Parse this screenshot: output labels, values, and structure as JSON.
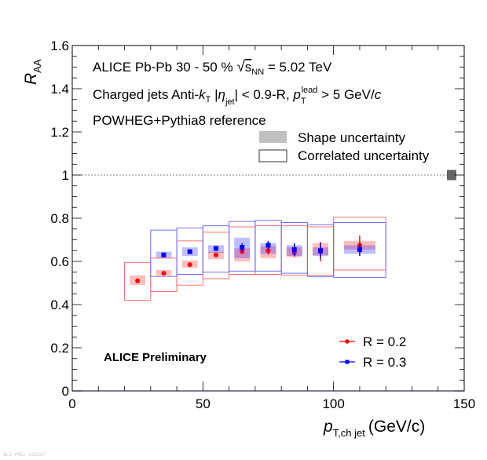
{
  "chart_data": {
    "type": "scatter",
    "xlabel_main": "p",
    "xlabel_sub": "T,ch jet",
    "xlabel_unit": "(GeV/c)",
    "ylabel_main": "R",
    "ylabel_sub": "AA",
    "xlim": [
      0,
      150
    ],
    "ylim": [
      0,
      1.6
    ],
    "x_ticks": [
      {
        "value": 0,
        "label": "0"
      },
      {
        "value": 50,
        "label": "50"
      },
      {
        "value": 100,
        "label": "100"
      },
      {
        "value": 150,
        "label": "150"
      }
    ],
    "y_ticks": [
      {
        "value": 0,
        "label": "0"
      },
      {
        "value": 0.2,
        "label": "0.2"
      },
      {
        "value": 0.4,
        "label": "0.4"
      },
      {
        "value": 0.6,
        "label": "0.6"
      },
      {
        "value": 0.8,
        "label": "0.8"
      },
      {
        "value": 1,
        "label": "1"
      },
      {
        "value": 1.2,
        "label": "1.2"
      },
      {
        "value": 1.4,
        "label": "1.4"
      },
      {
        "value": 1.6,
        "label": "1.6"
      }
    ],
    "reference_line": 1,
    "normalization_box": {
      "value": 1,
      "half_height": 0.02
    },
    "annotations": {
      "line1": {
        "a": "ALICE  Pb-Pb  30 - 50 %  ",
        "sqrt": "s",
        "sqrt_sub": "NN",
        "b": " = 5.02 TeV"
      },
      "line2": {
        "a": "Charged jets  Anti-",
        "k": "k",
        "k_sub": "T",
        "b": "  |",
        "eta": "η",
        "eta_sub": "jet",
        "c": "| < 0.9-R,  ",
        "p": "p",
        "p_sub": "T",
        "p_sup": "lead",
        "d": " > 5 GeV/",
        "cc": "c"
      },
      "line3": "POWHEG+Pythia8 reference",
      "preliminary": "ALICE Preliminary"
    },
    "legend_uncertainty": [
      {
        "label": "Shape uncertainty",
        "style": "filled"
      },
      {
        "label": "Correlated uncertainty",
        "style": "open"
      }
    ],
    "series": [
      {
        "name": "R = 0.2",
        "color": "#ff0000",
        "box_fill": "rgba(255,0,0,0.25)",
        "box_line": "#ff7070",
        "marker": "circle",
        "points": [
          {
            "x": 25,
            "y": 0.51,
            "xlo": 20,
            "xhi": 30,
            "stat": 0.0,
            "shape": [
              0.49,
              0.535
            ],
            "corr": [
              0.42,
              0.595
            ]
          },
          {
            "x": 35,
            "y": 0.545,
            "xlo": 30,
            "xhi": 40,
            "stat": 0.0,
            "shape": [
              0.535,
              0.56
            ],
            "corr": [
              0.46,
              0.615
            ]
          },
          {
            "x": 45,
            "y": 0.585,
            "xlo": 40,
            "xhi": 50,
            "stat": 0.0,
            "shape": [
              0.57,
              0.605
            ],
            "corr": [
              0.49,
              0.695
            ]
          },
          {
            "x": 55,
            "y": 0.63,
            "xlo": 50,
            "xhi": 60,
            "stat": 0.0,
            "shape": [
              0.61,
              0.645
            ],
            "corr": [
              0.52,
              0.735
            ]
          },
          {
            "x": 65,
            "y": 0.645,
            "xlo": 60,
            "xhi": 70,
            "stat": 0.01,
            "shape": [
              0.6,
              0.66
            ],
            "corr": [
              0.54,
              0.76
            ]
          },
          {
            "x": 75,
            "y": 0.65,
            "xlo": 70,
            "xhi": 80,
            "stat": 0.02,
            "shape": [
              0.615,
              0.67
            ],
            "corr": [
              0.54,
              0.765
            ]
          },
          {
            "x": 85,
            "y": 0.64,
            "xlo": 80,
            "xhi": 90,
            "stat": 0.02,
            "shape": [
              0.62,
              0.665
            ],
            "corr": [
              0.535,
              0.765
            ]
          },
          {
            "x": 95,
            "y": 0.645,
            "xlo": 90,
            "xhi": 100,
            "stat": 0.045,
            "shape": [
              0.63,
              0.685
            ],
            "corr": [
              0.535,
              0.76
            ]
          },
          {
            "x": 110,
            "y": 0.675,
            "xlo": 100,
            "xhi": 120,
            "stat": 0.045,
            "shape": [
              0.655,
              0.695
            ],
            "corr": [
              0.56,
              0.805
            ]
          }
        ]
      },
      {
        "name": "R = 0.3",
        "color": "#0000ff",
        "box_fill": "rgba(0,0,255,0.25)",
        "box_line": "#7070ff",
        "marker": "square",
        "points": [
          {
            "x": 35,
            "y": 0.63,
            "xlo": 30,
            "xhi": 40,
            "stat": 0.0,
            "shape": [
              0.615,
              0.645
            ],
            "corr": [
              0.53,
              0.745
            ]
          },
          {
            "x": 45,
            "y": 0.645,
            "xlo": 40,
            "xhi": 50,
            "stat": 0.0,
            "shape": [
              0.625,
              0.665
            ],
            "corr": [
              0.54,
              0.755
            ]
          },
          {
            "x": 55,
            "y": 0.66,
            "xlo": 50,
            "xhi": 60,
            "stat": 0.0,
            "shape": [
              0.64,
              0.675
            ],
            "corr": [
              0.55,
              0.765
            ]
          },
          {
            "x": 65,
            "y": 0.665,
            "xlo": 60,
            "xhi": 70,
            "stat": 0.02,
            "shape": [
              0.615,
              0.71
            ],
            "corr": [
              0.555,
              0.785
            ]
          },
          {
            "x": 75,
            "y": 0.675,
            "xlo": 70,
            "xhi": 80,
            "stat": 0.02,
            "shape": [
              0.635,
              0.685
            ],
            "corr": [
              0.555,
              0.79
            ]
          },
          {
            "x": 85,
            "y": 0.655,
            "xlo": 80,
            "xhi": 90,
            "stat": 0.03,
            "shape": [
              0.625,
              0.675
            ],
            "corr": [
              0.545,
              0.78
            ]
          },
          {
            "x": 95,
            "y": 0.65,
            "xlo": 90,
            "xhi": 100,
            "stat": 0.035,
            "shape": [
              0.625,
              0.665
            ],
            "corr": [
              0.53,
              0.77
            ]
          },
          {
            "x": 110,
            "y": 0.655,
            "xlo": 100,
            "xhi": 120,
            "stat": 0.03,
            "shape": [
              0.635,
              0.675
            ],
            "corr": [
              0.525,
              0.78
            ]
          }
        ]
      }
    ]
  },
  "footer": {
    "watermark": "ALI-PREL-156367"
  }
}
